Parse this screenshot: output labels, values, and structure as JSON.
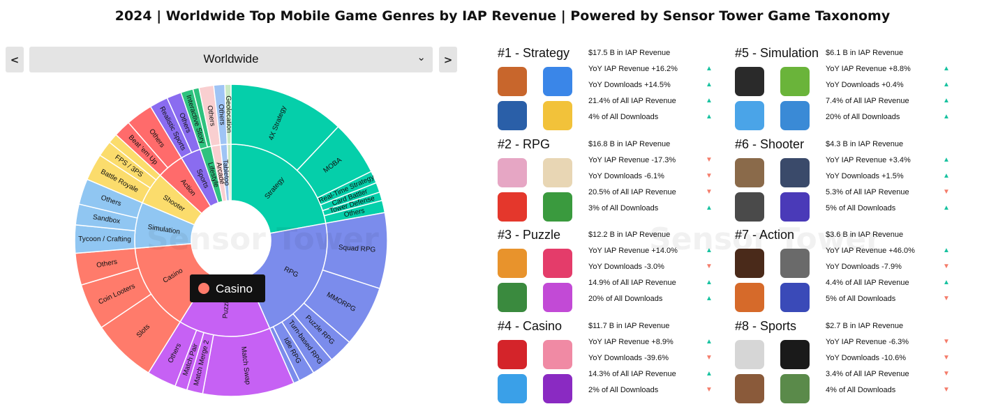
{
  "title": "2024 | Worldwide Top Mobile Game Genres by IAP Revenue | Powered by Sensor Tower Game Taxonomy",
  "controls": {
    "prev_icon": "chevron-left-icon",
    "next_icon": "chevron-right-icon",
    "region": "Worldwide",
    "dropdown_icon": "chevron-down-icon"
  },
  "watermark": "Sensor Tower",
  "tooltip": {
    "label": "Casino",
    "color": "#ff7b6b"
  },
  "chart_data": {
    "type": "sunburst",
    "center_label": "",
    "inner": [
      {
        "name": "Strategy",
        "value": 17.5,
        "color": "#05cfaa"
      },
      {
        "name": "RPG",
        "value": 16.8,
        "color": "#7b8cec"
      },
      {
        "name": "Puzzle",
        "value": 12.2,
        "color": "#c661f4"
      },
      {
        "name": "Casino",
        "value": 11.7,
        "color": "#ff7b6b"
      },
      {
        "name": "Simulation",
        "value": 6.1,
        "color": "#90c6f2"
      },
      {
        "name": "Shooter",
        "value": 4.3,
        "color": "#fbdc6c"
      },
      {
        "name": "Action",
        "value": 3.6,
        "color": "#ff6b6b"
      },
      {
        "name": "Sports",
        "value": 2.7,
        "color": "#8a6cf0"
      },
      {
        "name": "Lifestyle",
        "value": 1.5,
        "color": "#2ec27e"
      },
      {
        "name": "Arcade",
        "value": 1.2,
        "color": "#f9cfd0"
      },
      {
        "name": "Tabletop",
        "value": 0.9,
        "color": "#9fc4f5"
      },
      {
        "name": "",
        "value": 0.5,
        "color": "#c9e9c4"
      }
    ],
    "outer": [
      {
        "parent": "Strategy",
        "name": "4X Strategy",
        "value": 9.5
      },
      {
        "parent": "Strategy",
        "name": "MOBA",
        "value": 4.5
      },
      {
        "parent": "Strategy",
        "name": "Real-Time Strategy",
        "value": 1.0
      },
      {
        "parent": "Strategy",
        "name": "Card Battler",
        "value": 0.8
      },
      {
        "parent": "Strategy",
        "name": "Tower Defense",
        "value": 0.7
      },
      {
        "parent": "Strategy",
        "name": "Others",
        "value": 1.0
      },
      {
        "parent": "RPG",
        "name": "Squad RPG",
        "value": 6.2
      },
      {
        "parent": "RPG",
        "name": "MMORPG",
        "value": 5.0
      },
      {
        "parent": "RPG",
        "name": "Puzzle RPG",
        "value": 2.0
      },
      {
        "parent": "RPG",
        "name": "Turn-based RPG",
        "value": 1.8
      },
      {
        "parent": "RPG",
        "name": "Idle RPG",
        "value": 1.3
      },
      {
        "parent": "RPG",
        "name": "",
        "value": 0.5
      },
      {
        "parent": "Puzzle",
        "name": "Match Swap",
        "value": 7.5
      },
      {
        "parent": "Puzzle",
        "name": "Match Merge 2",
        "value": 1.3
      },
      {
        "parent": "Puzzle",
        "name": "Match Pair",
        "value": 1.0
      },
      {
        "parent": "Puzzle",
        "name": "Others",
        "value": 2.4
      },
      {
        "parent": "Casino",
        "name": "Slots",
        "value": 5.3
      },
      {
        "parent": "Casino",
        "name": "Coin Looters",
        "value": 3.8
      },
      {
        "parent": "Casino",
        "name": "Others",
        "value": 2.6
      },
      {
        "parent": "Simulation",
        "name": "Tycoon / Crafting",
        "value": 2.3
      },
      {
        "parent": "Simulation",
        "name": "Sandbox",
        "value": 1.7
      },
      {
        "parent": "Simulation",
        "name": "Others",
        "value": 2.1
      },
      {
        "parent": "Shooter",
        "name": "Battle Royale",
        "value": 2.2
      },
      {
        "parent": "Shooter",
        "name": "FPS / 3PS",
        "value": 1.3
      },
      {
        "parent": "Shooter",
        "name": "",
        "value": 0.8
      },
      {
        "parent": "Action",
        "name": "Beat 'em Up",
        "value": 1.4
      },
      {
        "parent": "Action",
        "name": "Others",
        "value": 2.2
      },
      {
        "parent": "Sports",
        "name": "Realistic Sports",
        "value": 1.5
      },
      {
        "parent": "Sports",
        "name": "Others",
        "value": 1.2
      },
      {
        "parent": "Lifestyle",
        "name": "Interactive Story",
        "value": 1.0
      },
      {
        "parent": "Lifestyle",
        "name": "",
        "value": 0.5
      },
      {
        "parent": "Arcade",
        "name": "Others",
        "value": 1.2
      },
      {
        "parent": "Tabletop",
        "name": "Others",
        "value": 0.9
      },
      {
        "parent": "",
        "name": "Geolocation",
        "value": 0.5
      }
    ]
  },
  "genres": [
    {
      "rank_title": "#1 - Strategy",
      "revenue": "$17.5 B in IAP Revenue",
      "stats": [
        {
          "text": "YoY IAP Revenue +16.2%",
          "dir": "up"
        },
        {
          "text": "YoY Downloads +14.5%",
          "dir": "up"
        },
        {
          "text": "21.4% of All IAP Revenue",
          "dir": "up"
        },
        {
          "text": "4% of All Downloads",
          "dir": "up"
        }
      ],
      "icons": [
        "#c8662c",
        "#3a86e8",
        "#2a5fa8",
        "#f2c23a"
      ]
    },
    {
      "rank_title": "#2 - RPG",
      "revenue": "$16.8 B in IAP Revenue",
      "stats": [
        {
          "text": "YoY IAP Revenue -17.3%",
          "dir": "down"
        },
        {
          "text": "YoY Downloads -6.1%",
          "dir": "down"
        },
        {
          "text": "20.5% of All IAP Revenue",
          "dir": "down"
        },
        {
          "text": "3% of All Downloads",
          "dir": "up"
        }
      ],
      "icons": [
        "#e6a6c4",
        "#e8d6b4",
        "#e4372c",
        "#3a9a3e"
      ]
    },
    {
      "rank_title": "#3 - Puzzle",
      "revenue": "$12.2 B in IAP Revenue",
      "stats": [
        {
          "text": "YoY IAP Revenue +14.0%",
          "dir": "up"
        },
        {
          "text": "YoY Downloads -3.0%",
          "dir": "down"
        },
        {
          "text": "14.9% of All IAP Revenue",
          "dir": "up"
        },
        {
          "text": "20% of All Downloads",
          "dir": "up"
        }
      ],
      "icons": [
        "#e8932c",
        "#e43c6a",
        "#3a8a3e",
        "#c24ad6"
      ]
    },
    {
      "rank_title": "#4 - Casino",
      "revenue": "$11.7 B in IAP Revenue",
      "stats": [
        {
          "text": "YoY IAP Revenue +8.9%",
          "dir": "up"
        },
        {
          "text": "YoY Downloads -39.6%",
          "dir": "down"
        },
        {
          "text": "14.3% of All IAP Revenue",
          "dir": "up"
        },
        {
          "text": "2% of All Downloads",
          "dir": "down"
        }
      ],
      "icons": [
        "#d4242a",
        "#f08aa4",
        "#3aa0e8",
        "#8a2ac2"
      ]
    },
    {
      "rank_title": "#5 - Simulation",
      "revenue": "$6.1 B in IAP Revenue",
      "stats": [
        {
          "text": "YoY IAP Revenue +8.8%",
          "dir": "up"
        },
        {
          "text": "YoY Downloads +0.4%",
          "dir": "up"
        },
        {
          "text": "7.4% of All IAP Revenue",
          "dir": "up"
        },
        {
          "text": "20% of All Downloads",
          "dir": "up"
        }
      ],
      "icons": [
        "#2a2a2a",
        "#6ab43a",
        "#4aa4e8",
        "#3a8ad6"
      ]
    },
    {
      "rank_title": "#6 - Shooter",
      "revenue": "$4.3 B in IAP Revenue",
      "stats": [
        {
          "text": "YoY IAP Revenue +3.4%",
          "dir": "up"
        },
        {
          "text": "YoY Downloads +1.5%",
          "dir": "up"
        },
        {
          "text": "5.3% of All IAP Revenue",
          "dir": "down"
        },
        {
          "text": "5% of All Downloads",
          "dir": "up"
        }
      ],
      "icons": [
        "#8a6a4a",
        "#3a4a6a",
        "#4a4a4a",
        "#4a3ab8"
      ]
    },
    {
      "rank_title": "#7 - Action",
      "revenue": "$3.6 B in IAP Revenue",
      "stats": [
        {
          "text": "YoY IAP Revenue +46.0%",
          "dir": "up"
        },
        {
          "text": "YoY Downloads -7.9%",
          "dir": "down"
        },
        {
          "text": "4.4% of All IAP Revenue",
          "dir": "up"
        },
        {
          "text": "5% of All Downloads",
          "dir": "down"
        }
      ],
      "icons": [
        "#4a2a1a",
        "#6a6a6a",
        "#d66a2a",
        "#3a4ab8"
      ]
    },
    {
      "rank_title": "#8 - Sports",
      "revenue": "$2.7 B in IAP Revenue",
      "stats": [
        {
          "text": "YoY IAP Revenue -6.3%",
          "dir": "down"
        },
        {
          "text": "YoY Downloads -10.6%",
          "dir": "down"
        },
        {
          "text": "3.4% of All IAP Revenue",
          "dir": "down"
        },
        {
          "text": "4% of All Downloads",
          "dir": "down"
        }
      ],
      "icons": [
        "#d6d6d6",
        "#1a1a1a",
        "#8a5a3a",
        "#5a8a4a"
      ]
    }
  ],
  "arrow_glyphs": {
    "up": "▲",
    "down": "▼"
  }
}
